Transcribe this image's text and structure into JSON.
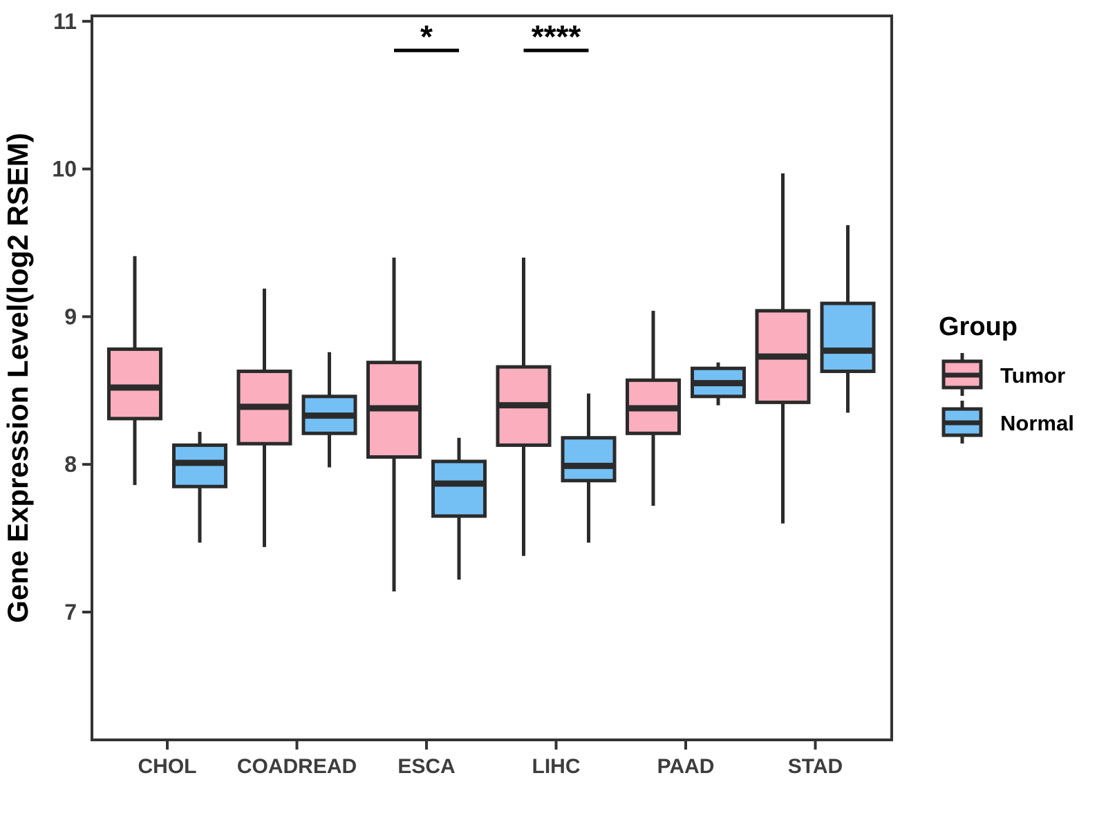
{
  "figure": {
    "background": "#FFFFFF"
  },
  "chart_data": {
    "type": "boxplot",
    "title": "",
    "xlabel": "",
    "ylabel": "Gene Expression Level(log2 RSEM)",
    "categories": [
      "CHOL",
      "COADREAD",
      "ESCA",
      "LIHC",
      "PAAD",
      "STAD"
    ],
    "y_ticks": [
      7,
      8,
      9,
      10,
      11
    ],
    "y_tick_labels": [
      "7",
      "8",
      "9",
      "10",
      "11"
    ],
    "ylim": [
      6.13,
      11.04
    ],
    "grid": false,
    "legend_position": "right",
    "series": [
      {
        "name": "Tumor",
        "color": "#FAAEBE",
        "boxes": [
          {
            "category": "CHOL",
            "whisker_low": 7.86,
            "q1": 8.31,
            "median": 8.52,
            "q3": 8.78,
            "whisker_high": 9.41
          },
          {
            "category": "COADREAD",
            "whisker_low": 7.44,
            "q1": 8.14,
            "median": 8.39,
            "q3": 8.63,
            "whisker_high": 9.19
          },
          {
            "category": "ESCA",
            "whisker_low": 7.14,
            "q1": 8.05,
            "median": 8.38,
            "q3": 8.69,
            "whisker_high": 9.4
          },
          {
            "category": "LIHC",
            "whisker_low": 7.38,
            "q1": 8.13,
            "median": 8.4,
            "q3": 8.66,
            "whisker_high": 9.4
          },
          {
            "category": "PAAD",
            "whisker_low": 7.72,
            "q1": 8.21,
            "median": 8.38,
            "q3": 8.57,
            "whisker_high": 9.04
          },
          {
            "category": "STAD",
            "whisker_low": 7.6,
            "q1": 8.42,
            "median": 8.73,
            "q3": 9.04,
            "whisker_high": 9.97
          }
        ]
      },
      {
        "name": "Normal",
        "color": "#74C0F5",
        "boxes": [
          {
            "category": "CHOL",
            "whisker_low": 7.47,
            "q1": 7.85,
            "median": 8.01,
            "q3": 8.13,
            "whisker_high": 8.22
          },
          {
            "category": "COADREAD",
            "whisker_low": 7.98,
            "q1": 8.21,
            "median": 8.33,
            "q3": 8.46,
            "whisker_high": 8.76
          },
          {
            "category": "ESCA",
            "whisker_low": 7.22,
            "q1": 7.65,
            "median": 7.87,
            "q3": 8.02,
            "whisker_high": 8.18
          },
          {
            "category": "LIHC",
            "whisker_low": 7.47,
            "q1": 7.89,
            "median": 7.99,
            "q3": 8.18,
            "whisker_high": 8.48
          },
          {
            "category": "PAAD",
            "whisker_low": 8.4,
            "q1": 8.46,
            "median": 8.55,
            "q3": 8.65,
            "whisker_high": 8.69
          },
          {
            "category": "STAD",
            "whisker_low": 8.35,
            "q1": 8.63,
            "median": 8.77,
            "q3": 9.09,
            "whisker_high": 9.62
          }
        ]
      }
    ],
    "significance": [
      {
        "category": "ESCA",
        "label": "*"
      },
      {
        "category": "LIHC",
        "label": "****"
      }
    ],
    "legend": {
      "title": "Group",
      "entries": [
        {
          "label": "Tumor",
          "color": "#FAAEBE"
        },
        {
          "label": "Normal",
          "color": "#74C0F5"
        }
      ]
    }
  },
  "style": {
    "box_border_color": "#2B2B2B",
    "axis_color": "#333333",
    "tick_label_color": "#3D3D3D",
    "text_color": "#000000"
  }
}
